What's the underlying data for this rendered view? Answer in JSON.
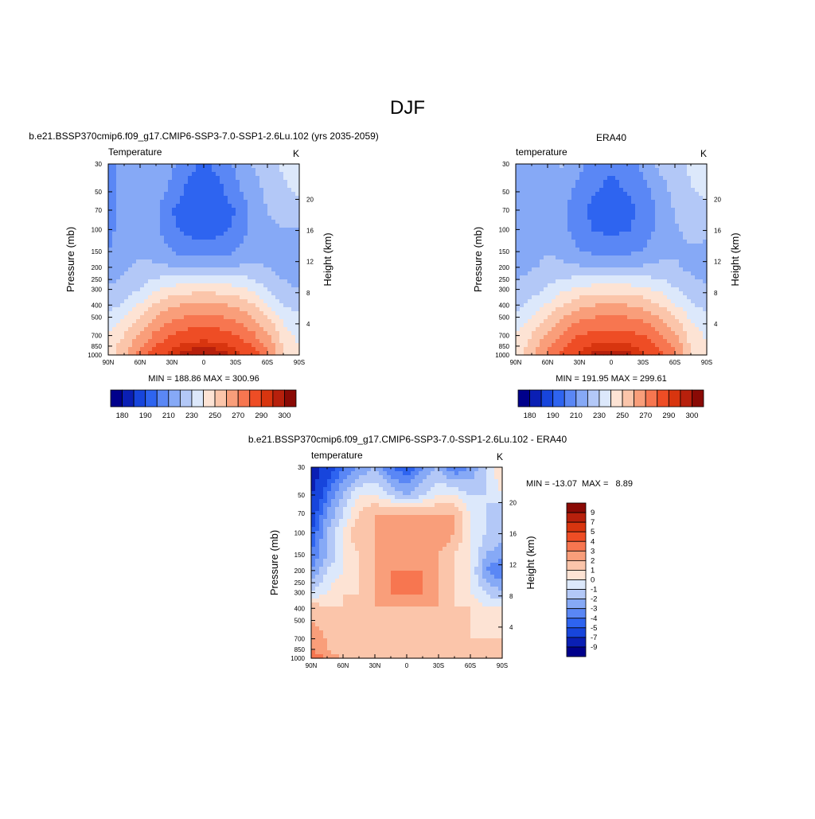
{
  "title": "DJF",
  "panels": [
    {
      "id": "model",
      "run_title": "b.e21.BSSP370cmip6.f09_g17.CMIP6-SSP3-7.0-SSP1-2.6Lu.102 (yrs 2035-2059)",
      "variable": "Temperature",
      "units": "K",
      "left_axis_label": "Pressure (mb)",
      "right_axis_label": "Height (km)",
      "stats": "MIN = 188.86  MAX = 300.96",
      "min": 188.86,
      "max": 300.96
    },
    {
      "id": "obs",
      "run_title": "ERA40",
      "variable": "temperature",
      "units": "K",
      "left_axis_label": "Pressure (mb)",
      "right_axis_label": "Height (km)",
      "stats": "MIN = 191.95  MAX = 299.61",
      "min": 191.95,
      "max": 299.61
    },
    {
      "id": "diff",
      "run_title": "b.e21.BSSP370cmip6.f09_g17.CMIP6-SSP3-7.0-SSP1-2.6Lu.102 - ERA40",
      "variable": "temperature",
      "units": "K",
      "left_axis_label": "Pressure (mb)",
      "right_axis_label": "Height (km)",
      "stats": "MIN = -13.07  MAX =   8.89",
      "min": -13.07,
      "max": 8.89
    }
  ],
  "axes": {
    "x_ticks": [
      "90N",
      "60N",
      "30N",
      "0",
      "30S",
      "60S",
      "90S"
    ],
    "pressure_ticks": [
      30,
      50,
      70,
      100,
      150,
      200,
      250,
      300,
      400,
      500,
      700,
      850,
      1000
    ],
    "height_ticks": [
      4,
      8,
      12,
      16,
      20
    ],
    "pressure_range": [
      30,
      1000
    ],
    "pressure_scale": "log"
  },
  "colorbars": {
    "absolute": {
      "orientation": "horizontal",
      "labels": [
        "180",
        "190",
        "210",
        "230",
        "250",
        "270",
        "290",
        "300"
      ],
      "colors": [
        "#00008b",
        "#0a1fb4",
        "#1745dc",
        "#2e64f0",
        "#5a87f5",
        "#86a9f6",
        "#b3c8f7",
        "#dce8fb",
        "#fde3d4",
        "#fbc5aa",
        "#f99e7a",
        "#f77650",
        "#ee4d25",
        "#d8350f",
        "#b7200c",
        "#8a0a05"
      ]
    },
    "difference": {
      "orientation": "vertical",
      "labels": [
        "9",
        "7",
        "5",
        "4",
        "3",
        "2",
        "1",
        "0",
        "-1",
        "-2",
        "-3",
        "-4",
        "-5",
        "-7",
        "-9"
      ],
      "colors": [
        "#8a0a05",
        "#b7200c",
        "#d8350f",
        "#ee4d25",
        "#f77650",
        "#f99e7a",
        "#fbc5aa",
        "#fde3d4",
        "#dce8fb",
        "#b3c8f7",
        "#86a9f6",
        "#5a87f5",
        "#2e64f0",
        "#1745dc",
        "#0a1fb4",
        "#00008b"
      ]
    }
  },
  "chart_data": [
    {
      "type": "heatmap",
      "title": "Temperature",
      "xlabel": "",
      "ylabel": "Pressure (mb)",
      "y2label": "Height (km)",
      "x": [
        -90,
        -75,
        -60,
        -45,
        -30,
        -15,
        0,
        15,
        30,
        45,
        60,
        75,
        90
      ],
      "y": [
        30,
        50,
        70,
        100,
        150,
        200,
        300,
        400,
        500,
        700,
        850,
        1000
      ],
      "z": [
        [
          205,
          213,
          219,
          220,
          212,
          202,
          199,
          202,
          212,
          220,
          224,
          232,
          236
        ],
        [
          205,
          213,
          218,
          216,
          206,
          198,
          195,
          198,
          206,
          216,
          222,
          228,
          232
        ],
        [
          206,
          214,
          218,
          212,
          200,
          195,
          193,
          195,
          200,
          212,
          220,
          224,
          226
        ],
        [
          207,
          214,
          218,
          212,
          202,
          197,
          195,
          197,
          202,
          212,
          218,
          220,
          220
        ],
        [
          210,
          216,
          219,
          216,
          210,
          206,
          204,
          206,
          210,
          216,
          218,
          218,
          216
        ],
        [
          212,
          218,
          222,
          222,
          221,
          221,
          221,
          221,
          221,
          222,
          220,
          216,
          214
        ],
        [
          222,
          225,
          230,
          238,
          244,
          246,
          247,
          246,
          244,
          238,
          230,
          223,
          220
        ],
        [
          226,
          232,
          241,
          252,
          258,
          261,
          262,
          261,
          258,
          252,
          241,
          230,
          226
        ],
        [
          232,
          240,
          251,
          261,
          268,
          271,
          272,
          271,
          268,
          261,
          251,
          237,
          231
        ],
        [
          240,
          250,
          262,
          273,
          281,
          285,
          286,
          285,
          281,
          273,
          262,
          245,
          238
        ],
        [
          244,
          255,
          269,
          280,
          288,
          293,
          294,
          293,
          288,
          280,
          269,
          248,
          240
        ],
        [
          246,
          258,
          274,
          286,
          294,
          298,
          300,
          298,
          294,
          286,
          274,
          250,
          242
        ]
      ],
      "contour_levels": [
        180,
        185,
        190,
        200,
        210,
        220,
        230,
        240,
        250,
        260,
        270,
        280,
        290,
        295,
        300
      ],
      "ylim": [
        1000,
        30
      ],
      "grid": false,
      "legend": "colorbar below"
    },
    {
      "type": "heatmap",
      "title": "temperature",
      "xlabel": "",
      "ylabel": "Pressure (mb)",
      "y2label": "Height (km)",
      "x": [
        -90,
        -75,
        -60,
        -45,
        -30,
        -15,
        0,
        15,
        30,
        45,
        60,
        75,
        90
      ],
      "y": [
        30,
        50,
        70,
        100,
        150,
        200,
        300,
        400,
        500,
        700,
        850,
        1000
      ],
      "z": [
        [
          211,
          214,
          219,
          221,
          213,
          204,
          201,
          204,
          213,
          222,
          226,
          232,
          235
        ],
        [
          211,
          214,
          219,
          215,
          206,
          200,
          198,
          200,
          206,
          215,
          223,
          229,
          232
        ],
        [
          211,
          214,
          219,
          212,
          202,
          197,
          195,
          197,
          202,
          212,
          221,
          226,
          227
        ],
        [
          212,
          215,
          219,
          213,
          204,
          199,
          198,
          199,
          204,
          213,
          219,
          222,
          222
        ],
        [
          214,
          217,
          220,
          217,
          211,
          208,
          206,
          208,
          211,
          217,
          219,
          219,
          218
        ],
        [
          216,
          219,
          222,
          222,
          221,
          221,
          221,
          221,
          221,
          222,
          221,
          218,
          216
        ],
        [
          223,
          226,
          231,
          238,
          243,
          245,
          246,
          245,
          243,
          238,
          231,
          224,
          221
        ],
        [
          227,
          233,
          241,
          251,
          257,
          260,
          261,
          260,
          257,
          251,
          241,
          231,
          227
        ],
        [
          233,
          241,
          251,
          261,
          267,
          270,
          271,
          270,
          267,
          261,
          251,
          238,
          232
        ],
        [
          240,
          250,
          262,
          272,
          280,
          284,
          285,
          284,
          280,
          272,
          262,
          246,
          238
        ],
        [
          243,
          254,
          268,
          279,
          287,
          292,
          293,
          292,
          287,
          279,
          268,
          249,
          240
        ],
        [
          245,
          257,
          272,
          284,
          292,
          297,
          299,
          297,
          292,
          284,
          272,
          251,
          242
        ]
      ],
      "contour_levels": [
        180,
        185,
        190,
        200,
        210,
        220,
        230,
        240,
        250,
        260,
        270,
        280,
        290,
        295,
        300
      ],
      "ylim": [
        1000,
        30
      ],
      "grid": false,
      "legend": "colorbar below"
    },
    {
      "type": "heatmap",
      "title": "temperature",
      "xlabel": "",
      "ylabel": "Pressure (mb)",
      "y2label": "Height (km)",
      "x": [
        -90,
        -75,
        -60,
        -45,
        -30,
        -15,
        0,
        15,
        30,
        45,
        60,
        75,
        90
      ],
      "y": [
        30,
        50,
        70,
        100,
        150,
        200,
        300,
        400,
        500,
        700,
        850,
        1000
      ],
      "z": [
        [
          -9,
          -6,
          -4,
          -3,
          -2,
          -4,
          -5,
          -3,
          -2,
          -4,
          -3,
          -1,
          1
        ],
        [
          -7,
          -4,
          -2,
          0,
          0,
          -1,
          -2,
          -1,
          0,
          0,
          -1,
          -1,
          0
        ],
        [
          -6,
          -3,
          -1,
          1,
          2,
          2,
          2,
          2,
          2,
          2,
          0,
          -1,
          -2
        ],
        [
          -5,
          -2,
          0,
          2,
          2,
          2,
          2,
          2,
          3,
          2,
          0,
          -1,
          -1
        ],
        [
          -4,
          -2,
          0,
          1,
          2,
          2,
          2,
          2,
          2,
          1,
          0,
          -2,
          -3
        ],
        [
          -3,
          -1,
          0,
          1,
          2,
          3,
          3,
          3,
          2,
          1,
          0,
          -3,
          -4
        ],
        [
          -1,
          0,
          1,
          1,
          2,
          3,
          3,
          3,
          2,
          1,
          0,
          -1,
          -2
        ],
        [
          2,
          1,
          1,
          1,
          2,
          2,
          2,
          2,
          2,
          1,
          1,
          0,
          0
        ],
        [
          2,
          1,
          1,
          1,
          1,
          1,
          1,
          1,
          1,
          1,
          1,
          0,
          0
        ],
        [
          3,
          2,
          1,
          1,
          1,
          1,
          1,
          1,
          1,
          1,
          1,
          1,
          1
        ],
        [
          3,
          2,
          1,
          1,
          1,
          1,
          1,
          1,
          1,
          1,
          1,
          1,
          1
        ],
        [
          4,
          3,
          2,
          1,
          1,
          1,
          1,
          1,
          1,
          1,
          1,
          1,
          1
        ]
      ],
      "contour_levels": [
        -9,
        -7,
        -5,
        -4,
        -3,
        -2,
        -1,
        0,
        1,
        2,
        3,
        4,
        5,
        7,
        9
      ],
      "ylim": [
        1000,
        30
      ],
      "grid": false,
      "legend": "colorbar right"
    }
  ]
}
